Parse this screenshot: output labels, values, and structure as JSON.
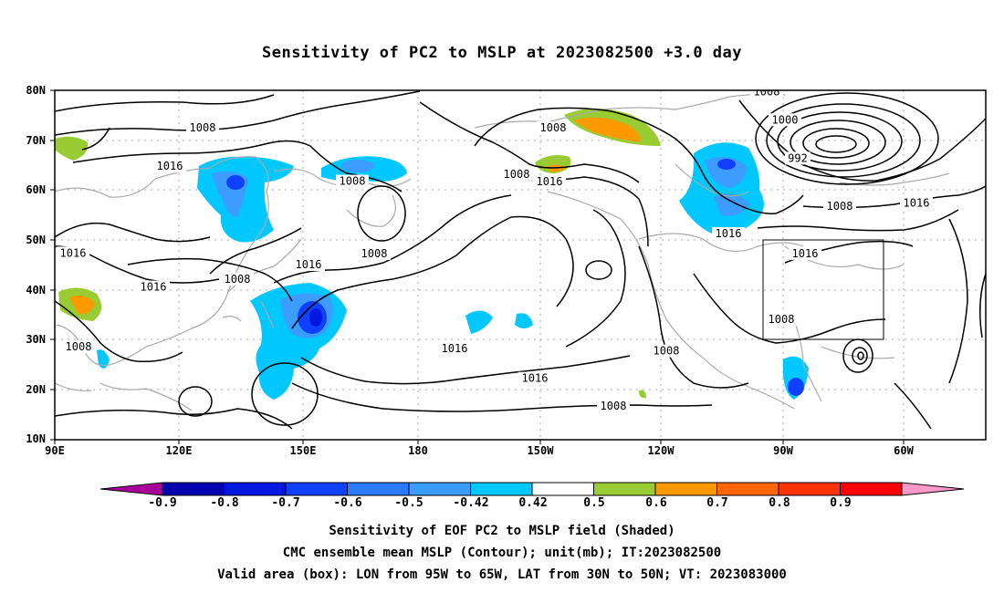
{
  "title": "Sensitivity of PC2 to MSLP at 2023082500 +3.0 day",
  "y_axis_labels": [
    "80N",
    "70N",
    "60N",
    "50N",
    "40N",
    "30N",
    "20N",
    "10N"
  ],
  "x_axis_labels": [
    "90E",
    "120E",
    "150E",
    "180",
    "150W",
    "120W",
    "90W",
    "60W"
  ],
  "colorbar": {
    "labels": [
      "-0.9",
      "-0.8",
      "-0.7",
      "-0.6",
      "-0.5",
      "-0.42",
      "0.42",
      "0.5",
      "0.6",
      "0.7",
      "0.8",
      "0.9"
    ],
    "colors": [
      "#aa0099",
      "#0000b0",
      "#0018e0",
      "#1040ff",
      "#2c78ff",
      "#3c9cff",
      "#00c8ff",
      "#ffffff",
      "#99cc33",
      "#ff9900",
      "#ff6600",
      "#ff3300",
      "#ff0000",
      "#ff99cc"
    ]
  },
  "contour_labels": [
    {
      "text": "1008",
      "lon": 130.5,
      "lat": 72.5
    },
    {
      "text": "1016",
      "lon": 121.5,
      "lat": 64.8
    },
    {
      "text": "1008",
      "lon": 171.5,
      "lat": 61.8
    },
    {
      "text": "1008",
      "lon": 226.5,
      "lat": 72.5
    },
    {
      "text": "1008",
      "lon": 216.5,
      "lat": 63.2
    },
    {
      "text": "1016",
      "lon": 225.5,
      "lat": 61.7
    },
    {
      "text": "1008",
      "lon": 285.0,
      "lat": 79.7
    },
    {
      "text": "1000",
      "lon": 290.0,
      "lat": 74.1
    },
    {
      "text": "992",
      "lon": 293.5,
      "lat": 66.4
    },
    {
      "text": "1016",
      "lon": 274.5,
      "lat": 51.3
    },
    {
      "text": "1008",
      "lon": 305.0,
      "lat": 56.8
    },
    {
      "text": "1016",
      "lon": 326.0,
      "lat": 57.4
    },
    {
      "text": "1016",
      "lon": 295.5,
      "lat": 47.3
    },
    {
      "text": "1016",
      "lon": 95.0,
      "lat": 47.4
    },
    {
      "text": "1016",
      "lon": 117.0,
      "lat": 40.6
    },
    {
      "text": "1008",
      "lon": 140.0,
      "lat": 42.2
    },
    {
      "text": "1016",
      "lon": 159.5,
      "lat": 45.1
    },
    {
      "text": "1008",
      "lon": 177.5,
      "lat": 47.3
    },
    {
      "text": "1016",
      "lon": 199.5,
      "lat": 28.3
    },
    {
      "text": "1016",
      "lon": 221.5,
      "lat": 22.3
    },
    {
      "text": "1008",
      "lon": 257.5,
      "lat": 27.8
    },
    {
      "text": "1008",
      "lon": 289.0,
      "lat": 34.1
    },
    {
      "text": "1008",
      "lon": 243.0,
      "lat": 16.8
    },
    {
      "text": "1008",
      "lon": 96.5,
      "lat": 28.6
    }
  ],
  "footer": [
    "Sensitivity of EOF PC2 to MSLP field (Shaded)",
    "CMC ensemble mean MSLP (Contour); unit(mb); IT:2023082500",
    "Valid area (box): LON from 95W to 65W, LAT from 30N to 50N; VT: 2023083000"
  ]
}
